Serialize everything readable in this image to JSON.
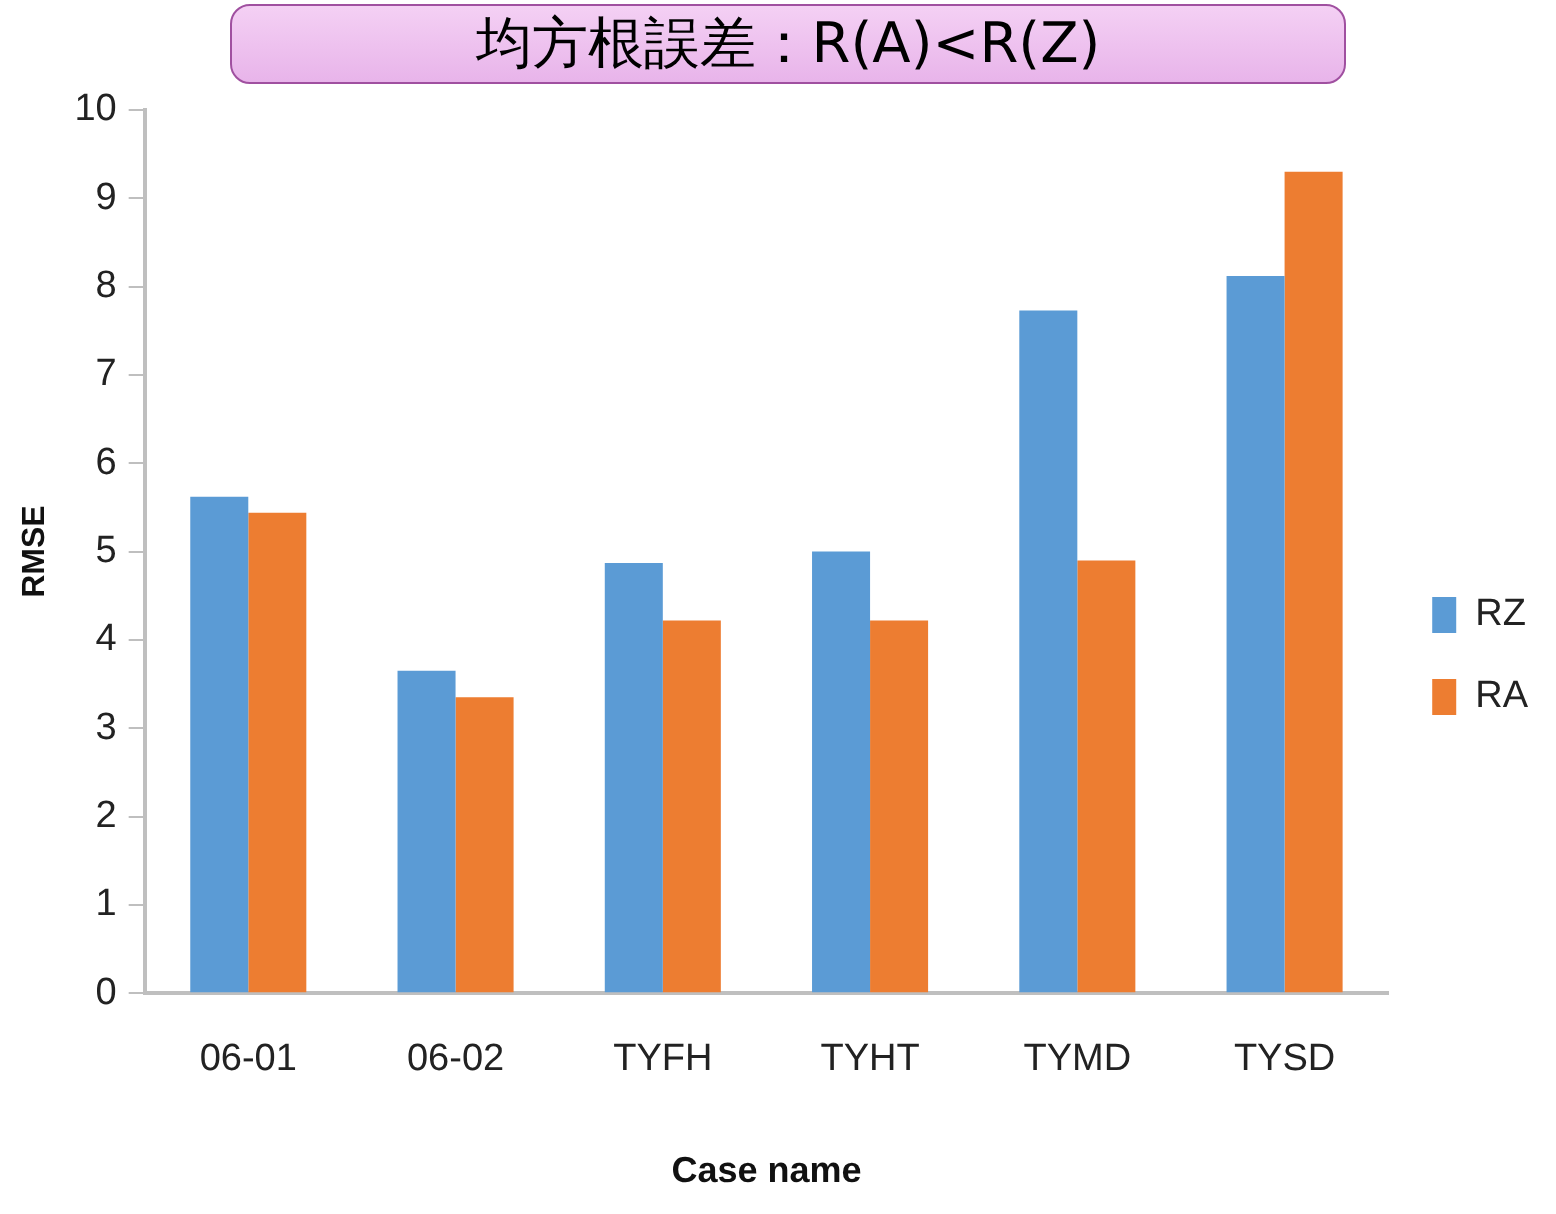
{
  "chart_data": {
    "type": "bar",
    "title": "均方根誤差：R(A)<R(Z)",
    "xlabel": "Case name",
    "ylabel": "RMSE",
    "categories": [
      "06-01",
      "06-02",
      "TYFH",
      "TYHT",
      "TYMD",
      "TYSD"
    ],
    "series": [
      {
        "name": "RZ",
        "color": "#5b9bd5",
        "values": [
          5.62,
          3.65,
          4.87,
          5.0,
          7.73,
          8.12
        ]
      },
      {
        "name": "RA",
        "color": "#ed7d31",
        "values": [
          5.44,
          3.35,
          4.22,
          4.22,
          4.9,
          9.3
        ]
      }
    ],
    "ylim": [
      0,
      10
    ],
    "yticks": [
      0,
      1,
      2,
      3,
      4,
      5,
      6,
      7,
      8,
      9,
      10
    ],
    "grid": false,
    "legend": "right"
  }
}
